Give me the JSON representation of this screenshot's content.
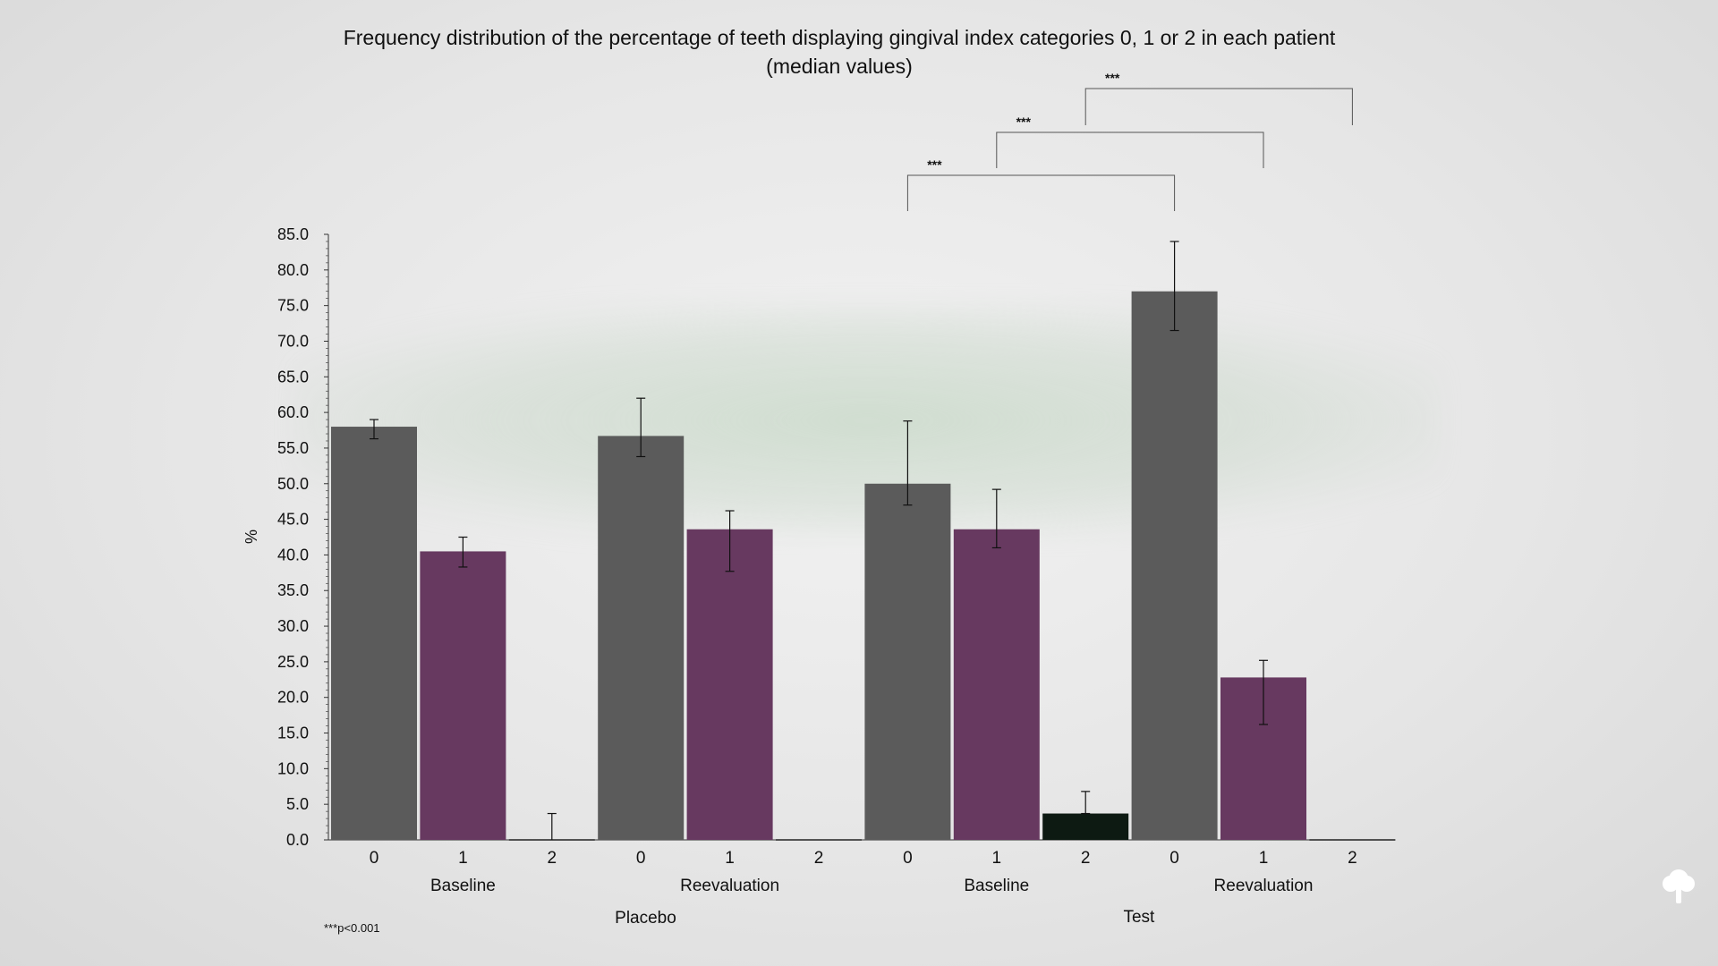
{
  "title_line1": "Frequency distribution of the percentage of teeth displaying gingival index categories 0, 1 or 2 in each patient",
  "title_line2": "(median values)",
  "footnote": "***p<0.001",
  "colors": {
    "category_0": "#5b5b5b",
    "category_1": "#673960",
    "category_2": "#0d1a12",
    "axis": "#333333",
    "bracket": "#555555"
  },
  "chart_data": {
    "type": "bar",
    "ylabel": "%",
    "ylim": [
      0,
      85
    ],
    "ytick_step": 5,
    "grid": false,
    "groups": [
      {
        "group": "Placebo",
        "timepoint": "Baseline",
        "categories": [
          "0",
          "1",
          "2"
        ],
        "values": [
          58.0,
          40.5,
          0.0
        ],
        "error_low": [
          56.3,
          38.3,
          0.0
        ],
        "error_high": [
          59.0,
          42.5,
          3.7
        ]
      },
      {
        "group": "Placebo",
        "timepoint": "Reevaluation",
        "categories": [
          "0",
          "1",
          "2"
        ],
        "values": [
          56.7,
          43.6,
          0.0
        ],
        "error_low": [
          53.8,
          37.7,
          0.0
        ],
        "error_high": [
          62.0,
          46.2,
          0.0
        ]
      },
      {
        "group": "Test",
        "timepoint": "Baseline",
        "categories": [
          "0",
          "1",
          "2"
        ],
        "values": [
          50.0,
          43.6,
          3.7
        ],
        "error_low": [
          47.0,
          41.0,
          3.7
        ],
        "error_high": [
          58.8,
          49.2,
          6.8
        ]
      },
      {
        "group": "Test",
        "timepoint": "Reevaluation",
        "categories": [
          "0",
          "1",
          "2"
        ],
        "values": [
          77.0,
          22.8,
          0.0
        ],
        "error_low": [
          71.5,
          16.2,
          0.0
        ],
        "error_high": [
          84.0,
          25.2,
          0.0
        ]
      }
    ],
    "treatment_labels": [
      "Placebo",
      "Test"
    ],
    "significance": [
      {
        "from_bar": 6,
        "to_bar": 9,
        "label": "***"
      },
      {
        "from_bar": 7,
        "to_bar": 10,
        "label": "***"
      },
      {
        "from_bar": 8,
        "to_bar": 11,
        "label": "***"
      }
    ]
  }
}
